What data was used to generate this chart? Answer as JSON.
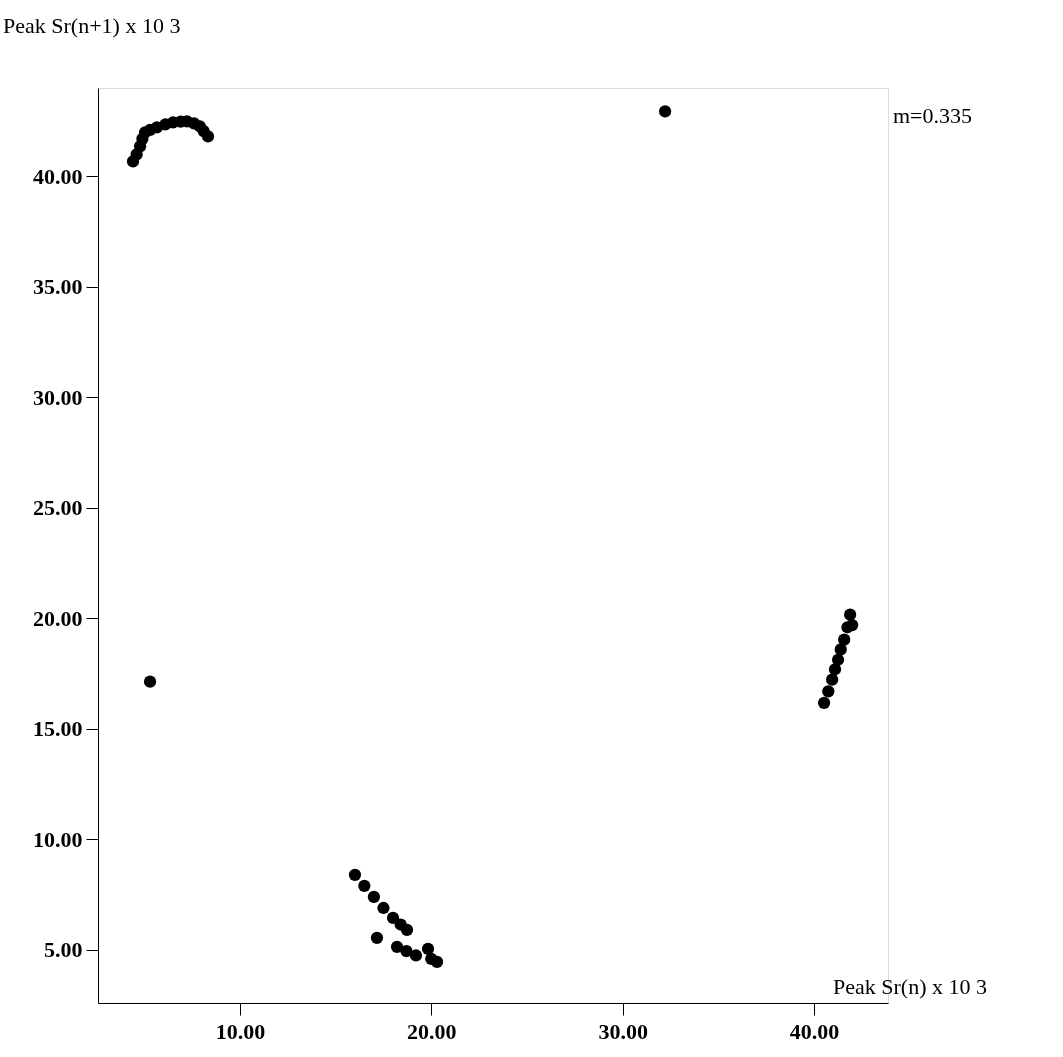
{
  "chart_data": {
    "type": "scatter",
    "xlabel": "Peak Sr(n) x 10 3",
    "ylabel": "Peak Sr(n+1) x 10 3",
    "annotations": [
      "m=0.335"
    ],
    "xlim": [
      2.58,
      43.87
    ],
    "ylim": [
      2.6,
      44.0
    ],
    "xticks": [
      {
        "value": 10,
        "label": "10.00"
      },
      {
        "value": 20,
        "label": "20.00"
      },
      {
        "value": 30,
        "label": "30.00"
      },
      {
        "value": 40,
        "label": "40.00"
      }
    ],
    "yticks": [
      {
        "value": 5,
        "label": "5.00"
      },
      {
        "value": 10,
        "label": "10.00"
      },
      {
        "value": 15,
        "label": "15.00"
      },
      {
        "value": 20,
        "label": "20.00"
      },
      {
        "value": 25,
        "label": "25.00"
      },
      {
        "value": 30,
        "label": "30.00"
      },
      {
        "value": 35,
        "label": "35.00"
      },
      {
        "value": 40,
        "label": "40.00"
      }
    ],
    "grid": false,
    "marker": "circle",
    "series": [
      {
        "color": "#000000",
        "x": [
          4.41,
          4.6,
          4.78,
          4.9,
          5.04,
          5.3,
          5.66,
          6.1,
          6.5,
          6.9,
          7.23,
          7.6,
          7.91,
          8.1,
          8.33,
          16.01,
          16.5,
          17.0,
          17.5,
          18.0,
          18.4,
          18.73,
          17.16,
          18.21,
          18.7,
          19.2,
          19.83,
          20.0,
          20.3,
          40.53,
          40.75,
          40.95,
          41.1,
          41.26,
          41.4,
          41.58,
          41.75,
          41.89,
          42.0,
          32.22,
          5.3
        ],
        "values": [
          40.68,
          41.0,
          41.36,
          41.7,
          41.99,
          42.1,
          42.22,
          42.35,
          42.44,
          42.48,
          42.49,
          42.4,
          42.26,
          42.05,
          41.81,
          8.4,
          7.9,
          7.4,
          6.9,
          6.45,
          6.15,
          5.91,
          5.55,
          5.14,
          4.95,
          4.75,
          5.05,
          4.6,
          4.46,
          16.18,
          16.7,
          17.23,
          17.7,
          18.13,
          18.6,
          19.04,
          19.6,
          20.17,
          19.7,
          42.94,
          17.14
        ]
      }
    ]
  }
}
